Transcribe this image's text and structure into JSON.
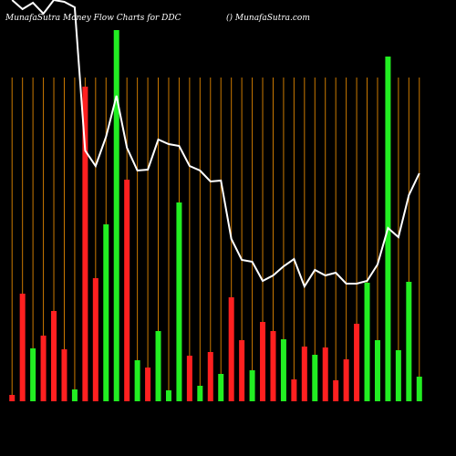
{
  "chart_data": {
    "type": "bar",
    "title": "MunafaSutra  Money Flow  Charts for DDC",
    "subtitle": "() MunafaSutra.com",
    "ylim": [
      0,
      440
    ],
    "bar_colors": {
      "up": "#22ee22",
      "down": "#ff2020"
    },
    "line_color": "#ffffff",
    "grid_color": "#cc7a00",
    "directions": [
      "down",
      "down",
      "up",
      "down",
      "down",
      "down",
      "up",
      "down",
      "down",
      "up",
      "up",
      "down",
      "up",
      "down",
      "up",
      "up",
      "up",
      "down",
      "up",
      "down",
      "up",
      "down",
      "down",
      "up",
      "down",
      "down",
      "up",
      "down",
      "down",
      "up",
      "down",
      "down",
      "down",
      "down",
      "up",
      "up",
      "up",
      "up",
      "up",
      "up"
    ],
    "values": [
      7,
      118,
      58,
      72,
      99,
      57,
      13,
      345,
      135,
      194,
      407,
      243,
      45,
      37,
      77,
      12,
      218,
      50,
      17,
      54,
      30,
      114,
      67,
      34,
      87,
      77,
      68,
      24,
      60,
      51,
      59,
      23,
      46,
      85,
      130,
      67,
      378,
      56,
      131,
      27
    ],
    "line_values": [
      440,
      430,
      437,
      425,
      440,
      438,
      432,
      275,
      258,
      290,
      335,
      278,
      253,
      254,
      287,
      282,
      280,
      258,
      253,
      241,
      242,
      178,
      155,
      153,
      132,
      138,
      148,
      156,
      126,
      144,
      138,
      141,
      129,
      129,
      132,
      150,
      190,
      180,
      226,
      250
    ]
  }
}
